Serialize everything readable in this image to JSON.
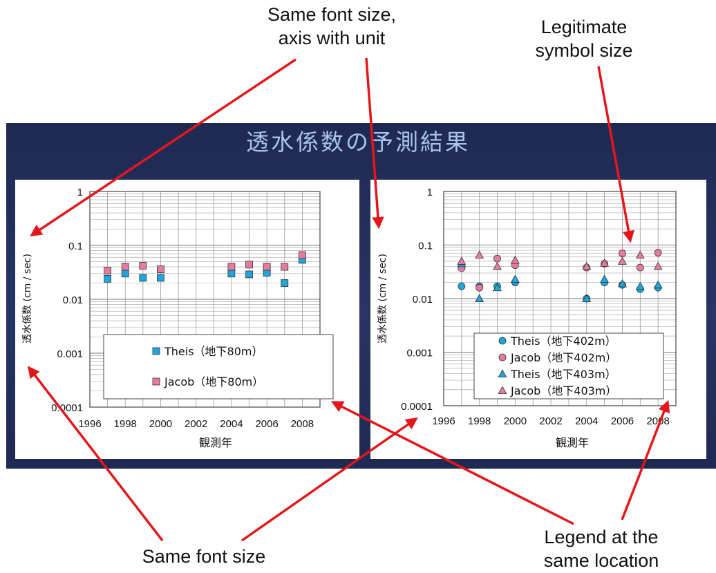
{
  "slide": {
    "title": "透水係数の予測結果",
    "background": "#232f5c",
    "title_color": "#a9c3ee"
  },
  "annotations": {
    "top": [
      "Same font size,",
      "axis with unit"
    ],
    "symbol": [
      "Legitimate",
      "symbol size"
    ],
    "font": [
      "Same font size"
    ],
    "legend": [
      "Legend at the",
      "same location"
    ],
    "arrow_color": "#e5161b"
  },
  "chart_data": [
    {
      "type": "scatter",
      "title": "",
      "xlabel": "観測年",
      "ylabel": "透水係数 (cm / sec)",
      "xlim": [
        1996,
        2009
      ],
      "ylim": [
        0.0001,
        1
      ],
      "yscale": "log",
      "x_ticks": [
        "1996",
        "1998",
        "2000",
        "2002",
        "2004",
        "2006",
        "2008"
      ],
      "y_ticks": [
        "0.0001",
        "0.001",
        "0.01",
        "0.1",
        "1"
      ],
      "grid": true,
      "legend_position": "bottom",
      "series": [
        {
          "name": "Theis（地下80m）",
          "marker": "square",
          "color": "#1ea6dc",
          "x": [
            1997,
            1998,
            1999,
            2000,
            2004,
            2005,
            2006,
            2007,
            2008
          ],
          "y": [
            0.024,
            0.03,
            0.025,
            0.025,
            0.03,
            0.029,
            0.031,
            0.02,
            0.054
          ]
        },
        {
          "name": "Jacob（地下80m）",
          "marker": "square",
          "color": "#e77aa3",
          "x": [
            1997,
            1998,
            1999,
            2000,
            2004,
            2005,
            2006,
            2007,
            2008
          ],
          "y": [
            0.034,
            0.04,
            0.042,
            0.036,
            0.04,
            0.044,
            0.04,
            0.04,
            0.066
          ]
        }
      ]
    },
    {
      "type": "scatter",
      "title": "",
      "xlabel": "観測年",
      "ylabel": "透水係数 (cm / sec)",
      "xlim": [
        1996,
        2009
      ],
      "ylim": [
        0.0001,
        1
      ],
      "yscale": "log",
      "x_ticks": [
        "1996",
        "1998",
        "2000",
        "2002",
        "2004",
        "2006",
        "2008"
      ],
      "y_ticks": [
        "0.0001",
        "0.001",
        "0.01",
        "0.1",
        "1"
      ],
      "grid": true,
      "legend_position": "bottom",
      "series": [
        {
          "name": "Theis（地下402m）",
          "marker": "circle",
          "color": "#1ea6dc",
          "x": [
            1997,
            1998,
            1999,
            2000,
            2004,
            2005,
            2006,
            2007,
            2008
          ],
          "y": [
            0.017,
            0.017,
            0.017,
            0.02,
            0.01,
            0.02,
            0.018,
            0.015,
            0.016
          ]
        },
        {
          "name": "Jacob（地下402m）",
          "marker": "circle",
          "color": "#e77aa3",
          "x": [
            1997,
            1998,
            1999,
            2000,
            2004,
            2005,
            2006,
            2007,
            2008
          ],
          "y": [
            0.037,
            0.016,
            0.056,
            0.042,
            0.038,
            0.045,
            0.07,
            0.038,
            0.072
          ]
        },
        {
          "name": "Theis（地下403m）",
          "marker": "triangle",
          "color": "#1ea6dc",
          "x": [
            1997,
            1998,
            1999,
            2000,
            2004,
            2005,
            2006,
            2007,
            2008
          ],
          "y": [
            0.045,
            0.01,
            0.016,
            0.023,
            0.01,
            0.023,
            0.019,
            0.017,
            0.018
          ]
        },
        {
          "name": "Jacob（地下403m）",
          "marker": "triangle",
          "color": "#e77aa3",
          "x": [
            1997,
            1998,
            1999,
            2000,
            2004,
            2005,
            2006,
            2007,
            2008
          ],
          "y": [
            0.05,
            0.065,
            0.04,
            0.052,
            0.04,
            0.046,
            0.05,
            0.065,
            0.04
          ]
        }
      ]
    }
  ]
}
